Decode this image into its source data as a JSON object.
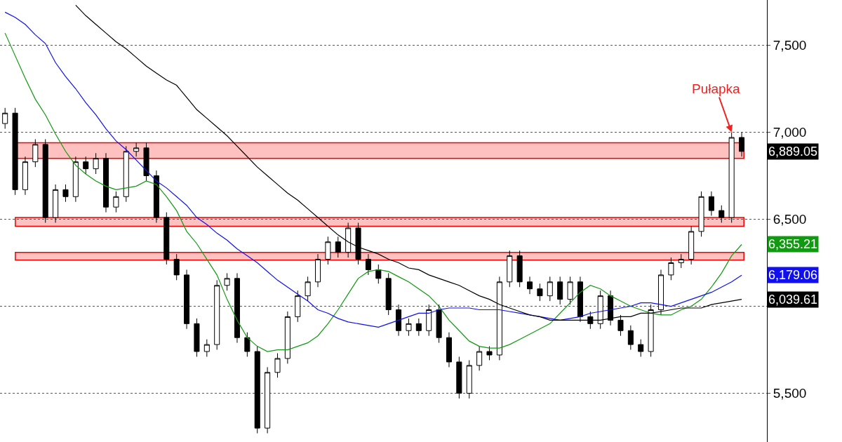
{
  "chart_data": {
    "type": "candlestick",
    "categories": [
      null,
      null,
      null,
      null,
      null,
      null,
      null,
      null,
      null,
      null,
      null,
      null,
      null,
      null,
      null,
      null,
      null,
      null,
      null,
      null,
      null,
      null,
      null,
      null,
      null,
      null,
      null,
      null,
      null,
      null,
      null,
      null,
      null,
      null,
      null,
      null,
      null,
      null,
      null,
      null,
      null,
      null,
      null,
      null,
      null,
      null,
      null,
      null,
      null,
      null,
      null,
      null,
      null,
      null,
      null,
      null,
      null,
      null,
      null,
      null,
      null,
      null,
      null,
      null,
      null,
      null,
      null,
      null,
      null,
      null,
      null,
      null,
      null,
      null
    ],
    "ohlc": [
      [
        7050,
        7140,
        7020,
        7110
      ],
      [
        7110,
        7140,
        6640,
        6670
      ],
      [
        6670,
        6860,
        6640,
        6830
      ],
      [
        6830,
        6960,
        6800,
        6930
      ],
      [
        6930,
        6960,
        6480,
        6510
      ],
      [
        6510,
        6700,
        6480,
        6670
      ],
      [
        6670,
        6700,
        6600,
        6630
      ],
      [
        6630,
        6860,
        6600,
        6830
      ],
      [
        6830,
        6860,
        6760,
        6790
      ],
      [
        6790,
        6880,
        6760,
        6850
      ],
      [
        6850,
        6880,
        6540,
        6570
      ],
      [
        6570,
        6660,
        6540,
        6630
      ],
      [
        6630,
        6920,
        6600,
        6890
      ],
      [
        6890,
        6940,
        6860,
        6910
      ],
      [
        6910,
        6940,
        6720,
        6750
      ],
      [
        6750,
        6780,
        6480,
        6510
      ],
      [
        6510,
        6540,
        6240,
        6270
      ],
      [
        6270,
        6300,
        6150,
        6180
      ],
      [
        6180,
        6210,
        5870,
        5900
      ],
      [
        5900,
        5930,
        5710,
        5740
      ],
      [
        5740,
        5810,
        5710,
        5780
      ],
      [
        5780,
        6150,
        5750,
        6120
      ],
      [
        6120,
        6190,
        6090,
        6160
      ],
      [
        6160,
        6190,
        5790,
        5820
      ],
      [
        5820,
        5850,
        5710,
        5740
      ],
      [
        5740,
        5770,
        5270,
        5300
      ],
      [
        5300,
        5650,
        5270,
        5620
      ],
      [
        5620,
        5730,
        5590,
        5700
      ],
      [
        5700,
        5970,
        5670,
        5940
      ],
      [
        5940,
        6090,
        5910,
        6060
      ],
      [
        6060,
        6170,
        6030,
        6140
      ],
      [
        6140,
        6300,
        6110,
        6270
      ],
      [
        6270,
        6400,
        6240,
        6370
      ],
      [
        6370,
        6400,
        6280,
        6310
      ],
      [
        6310,
        6480,
        6280,
        6450
      ],
      [
        6450,
        6480,
        6240,
        6270
      ],
      [
        6270,
        6300,
        6180,
        6210
      ],
      [
        6210,
        6240,
        6130,
        6160
      ],
      [
        6160,
        6190,
        5950,
        5980
      ],
      [
        5980,
        6010,
        5830,
        5860
      ],
      [
        5860,
        5930,
        5830,
        5900
      ],
      [
        5900,
        5930,
        5830,
        5860
      ],
      [
        5860,
        6010,
        5830,
        5980
      ],
      [
        5980,
        6010,
        5790,
        5820
      ],
      [
        5820,
        5850,
        5650,
        5680
      ],
      [
        5680,
        5710,
        5470,
        5500
      ],
      [
        5500,
        5690,
        5470,
        5660
      ],
      [
        5660,
        5770,
        5630,
        5740
      ],
      [
        5740,
        5770,
        5690,
        5720
      ],
      [
        5720,
        6170,
        5690,
        6140
      ],
      [
        6140,
        6320,
        6110,
        6290
      ],
      [
        6290,
        6320,
        6110,
        6140
      ],
      [
        6140,
        6170,
        6070,
        6100
      ],
      [
        6100,
        6130,
        6030,
        6060
      ],
      [
        6060,
        6170,
        6030,
        6140
      ],
      [
        6140,
        6170,
        6010,
        6040
      ],
      [
        6040,
        6170,
        6010,
        6140
      ],
      [
        6140,
        6170,
        5910,
        5940
      ],
      [
        5940,
        5970,
        5870,
        5900
      ],
      [
        5900,
        6090,
        5870,
        6060
      ],
      [
        6060,
        6090,
        5890,
        5920
      ],
      [
        5920,
        5950,
        5830,
        5860
      ],
      [
        5860,
        5890,
        5750,
        5780
      ],
      [
        5780,
        5810,
        5710,
        5740
      ],
      [
        5740,
        6010,
        5710,
        5980
      ],
      [
        5980,
        6210,
        5950,
        6180
      ],
      [
        6180,
        6280,
        6150,
        6250
      ],
      [
        6250,
        6300,
        6220,
        6270
      ],
      [
        6270,
        6460,
        6240,
        6430
      ],
      [
        6430,
        6660,
        6400,
        6630
      ],
      [
        6630,
        6660,
        6520,
        6550
      ],
      [
        6550,
        6580,
        6480,
        6510
      ],
      [
        6510,
        7000,
        6480,
        6970
      ],
      [
        6970,
        7000,
        6860,
        6890
      ]
    ],
    "series": [
      {
        "type": "line",
        "color": "#119911",
        "values": [
          7570,
          7440,
          7310,
          7190,
          7100,
          6990,
          6890,
          6810,
          6760,
          6720,
          6690,
          6670,
          6680,
          6690,
          6720,
          6700,
          6630,
          6550,
          6430,
          6360,
          6270,
          6180,
          6040,
          5920,
          5820,
          5770,
          5740,
          5750,
          5750,
          5770,
          5790,
          5830,
          5900,
          5980,
          6070,
          6160,
          6200,
          6210,
          6200,
          6170,
          6140,
          6100,
          6060,
          6000,
          5920,
          5860,
          5800,
          5770,
          5760,
          5760,
          5780,
          5810,
          5840,
          5870,
          5900,
          5960,
          6020,
          6080,
          6120,
          6100,
          6060,
          6030,
          6000,
          5980,
          5960,
          5950,
          5950,
          5980,
          6000,
          6040,
          6110,
          6190,
          6290,
          6355
        ]
      },
      {
        "type": "line",
        "color": "#1010ee",
        "values": [
          7690,
          7660,
          7620,
          7560,
          7510,
          7400,
          7320,
          7250,
          7170,
          7100,
          7020,
          6950,
          6900,
          6840,
          6780,
          6720,
          6680,
          6630,
          6580,
          6510,
          6470,
          6420,
          6380,
          6330,
          6290,
          6250,
          6200,
          6150,
          6110,
          6070,
          6030,
          5980,
          5960,
          5930,
          5910,
          5900,
          5890,
          5880,
          5900,
          5920,
          5940,
          5960,
          5960,
          5980,
          5990,
          5990,
          5990,
          5980,
          5980,
          5980,
          5970,
          5960,
          5950,
          5940,
          5930,
          5920,
          5930,
          5940,
          5960,
          5970,
          5980,
          5990,
          6000,
          6020,
          6020,
          6010,
          6000,
          6020,
          6040,
          6060,
          6080,
          6110,
          6140,
          6179
        ]
      },
      {
        "type": "line",
        "color": "#000000",
        "values": [
          null,
          null,
          null,
          null,
          null,
          null,
          null,
          7730,
          7670,
          7620,
          7570,
          7520,
          7480,
          7430,
          7380,
          7340,
          7300,
          7270,
          7200,
          7130,
          7080,
          7030,
          6980,
          6920,
          6860,
          6800,
          6750,
          6700,
          6650,
          6610,
          6560,
          6510,
          6460,
          6410,
          6370,
          6340,
          6320,
          6300,
          6270,
          6250,
          6220,
          6210,
          6180,
          6160,
          6140,
          6120,
          6090,
          6060,
          6040,
          6010,
          5990,
          5970,
          5950,
          5940,
          5920,
          5920,
          5920,
          5920,
          5920,
          5920,
          5930,
          5940,
          5940,
          5960,
          5960,
          5970,
          5980,
          5990,
          5990,
          5990,
          6010,
          6020,
          6030,
          6040
        ]
      }
    ],
    "ylim": [
      5220,
      7760
    ],
    "yticks": [
      {
        "value": 5500,
        "label": "5,500"
      },
      {
        "value": 6000,
        "label": null
      },
      {
        "value": 6500,
        "label": "6,500"
      },
      {
        "value": 7000,
        "label": "7,000"
      },
      {
        "value": 7500,
        "label": "7,500"
      }
    ],
    "bands": [
      {
        "axis": "y",
        "from": 6850,
        "to": 6940,
        "color": "#ffc0c0"
      },
      {
        "axis": "y",
        "from": 6460,
        "to": 6510,
        "color": "#ffc0c0"
      },
      {
        "axis": "y",
        "from": 6265,
        "to": 6310,
        "color": "#ffc0c0"
      }
    ],
    "annotations": [
      "6,889.05",
      "6,355.21",
      "6,179.06",
      "6,039.61",
      "Pułapka"
    ],
    "grid": "y",
    "tick_labels": "y"
  }
}
